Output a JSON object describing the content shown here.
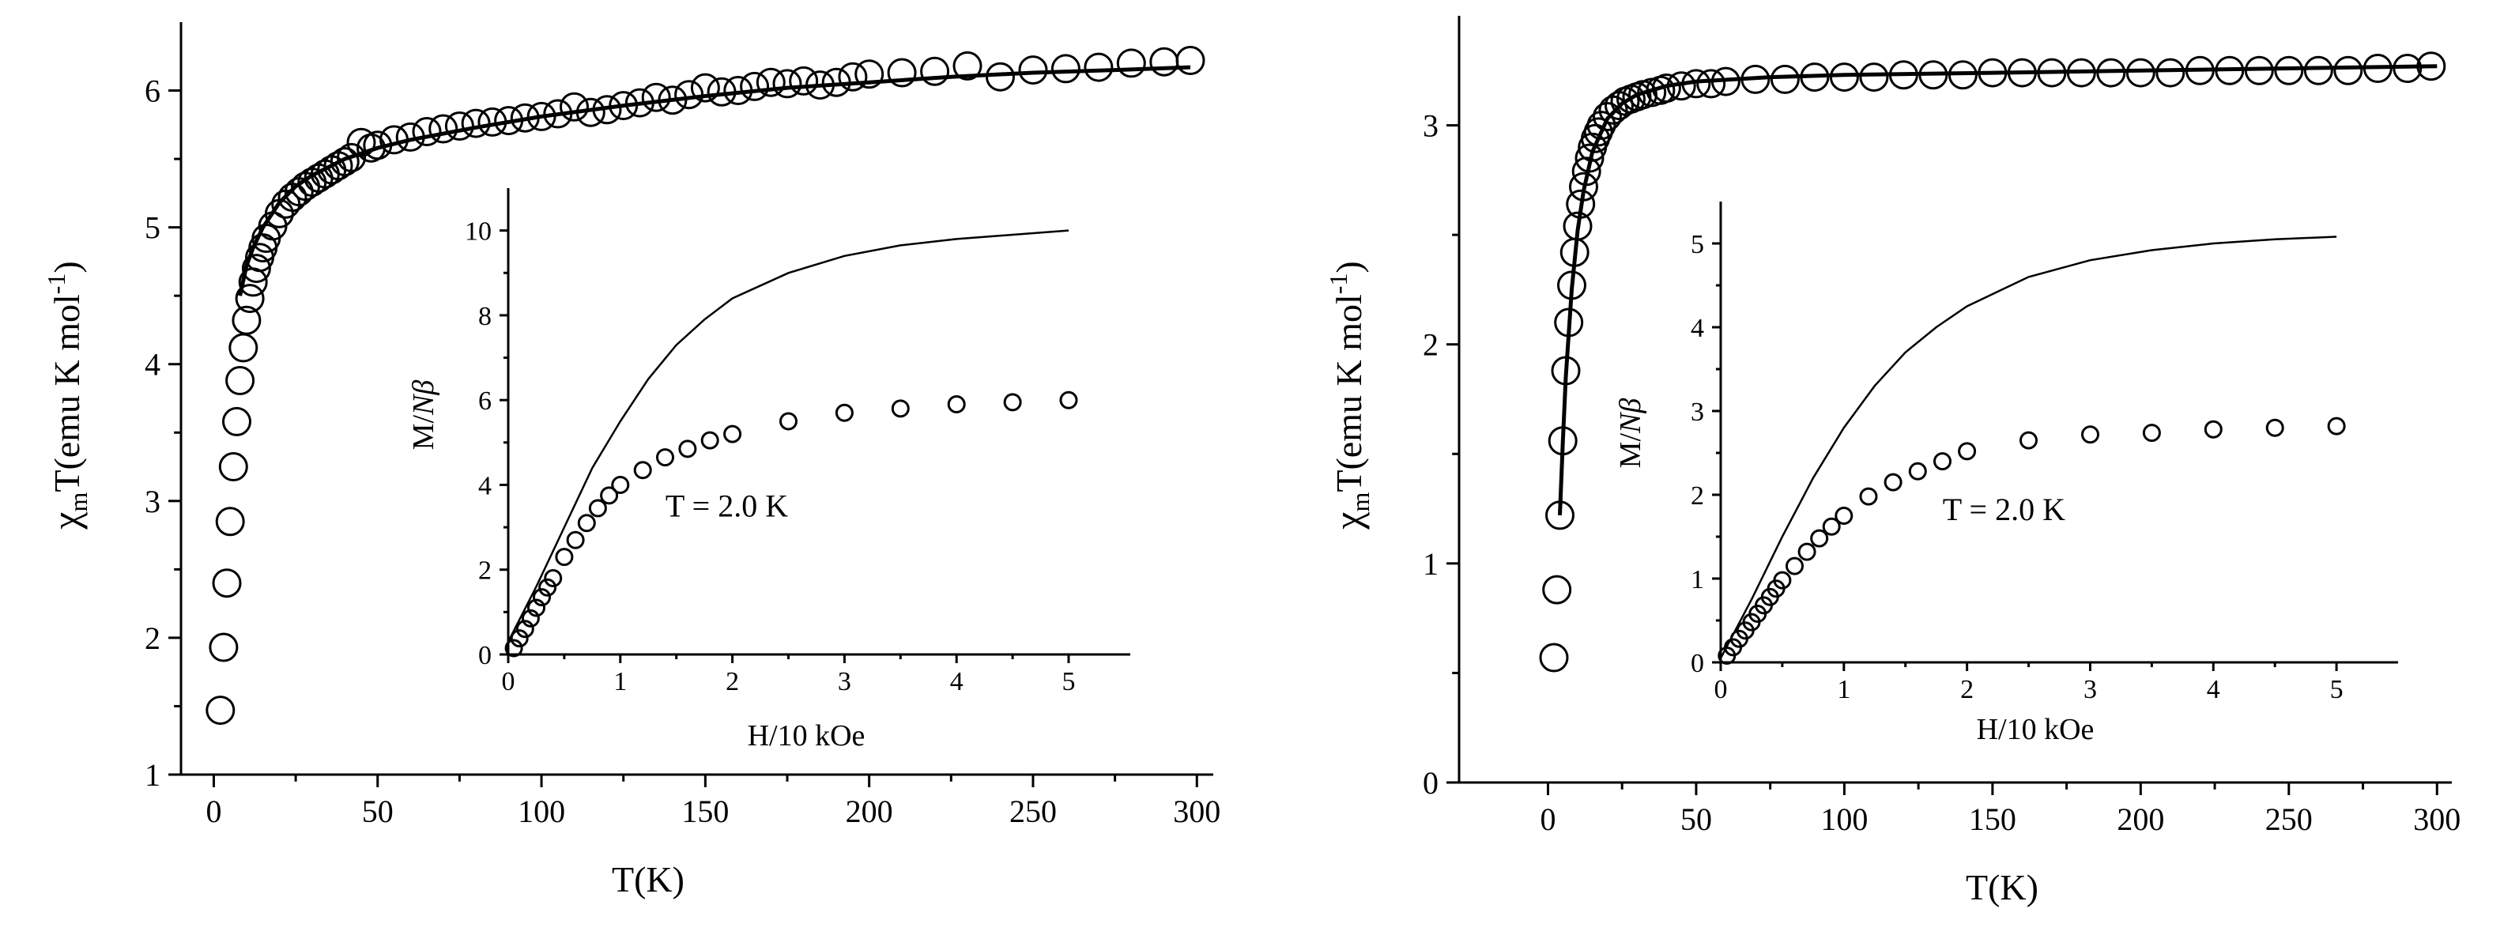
{
  "chart_data": [
    {
      "type": "scatter",
      "panel": "left-main",
      "xlabel": "T(K)",
      "ylabel": {
        "chi": "χ",
        "sub": "m",
        "text": "T(emu K mol",
        "sup": "-1",
        "close": ")"
      },
      "xlim": [
        -10,
        305
      ],
      "ylim": [
        1,
        6.5
      ],
      "xticks": [
        0,
        50,
        100,
        150,
        200,
        250,
        300
      ],
      "yticks": [
        1,
        2,
        3,
        4,
        5,
        6
      ],
      "series": [
        {
          "name": "experimental",
          "style": "open-circle",
          "x": [
            2,
            3,
            4,
            5,
            6,
            7,
            8,
            9,
            10,
            11,
            12,
            13,
            14,
            15,
            16,
            18,
            20,
            22,
            24,
            26,
            28,
            30,
            32,
            34,
            36,
            38,
            40,
            42,
            45,
            48,
            50,
            55,
            60,
            65,
            70,
            75,
            80,
            85,
            90,
            95,
            100,
            105,
            110,
            115,
            120,
            125,
            130,
            135,
            140,
            145,
            150,
            155,
            160,
            165,
            170,
            175,
            180,
            185,
            190,
            195,
            200,
            210,
            220,
            230,
            240,
            250,
            260,
            270,
            280,
            290,
            298
          ],
          "y": [
            1.47,
            1.93,
            2.4,
            2.85,
            3.25,
            3.58,
            3.88,
            4.12,
            4.32,
            4.48,
            4.6,
            4.7,
            4.78,
            4.85,
            4.92,
            5.01,
            5.1,
            5.17,
            5.22,
            5.26,
            5.3,
            5.33,
            5.36,
            5.39,
            5.42,
            5.45,
            5.48,
            5.51,
            5.62,
            5.58,
            5.6,
            5.64,
            5.66,
            5.7,
            5.72,
            5.74,
            5.76,
            5.77,
            5.78,
            5.8,
            5.81,
            5.83,
            5.88,
            5.84,
            5.86,
            5.89,
            5.91,
            5.95,
            5.93,
            5.97,
            6.02,
            5.99,
            6.0,
            6.03,
            6.06,
            6.05,
            6.07,
            6.04,
            6.06,
            6.1,
            6.12,
            6.13,
            6.14,
            6.18,
            6.1,
            6.15,
            6.16,
            6.17,
            6.2,
            6.21,
            6.22
          ]
        },
        {
          "name": "fit",
          "style": "line",
          "x": [
            8,
            10,
            12,
            15,
            20,
            25,
            30,
            40,
            50,
            60,
            80,
            100,
            125,
            150,
            175,
            200,
            225,
            250,
            275,
            298
          ],
          "y": [
            4.5,
            4.72,
            4.85,
            5.0,
            5.18,
            5.3,
            5.38,
            5.5,
            5.58,
            5.64,
            5.73,
            5.81,
            5.89,
            5.96,
            6.02,
            6.06,
            6.1,
            6.13,
            6.15,
            6.17
          ]
        }
      ]
    },
    {
      "type": "scatter",
      "panel": "left-inset",
      "xlabel": "H/10 kOe",
      "ylabel": "M/Nβ",
      "xlim": [
        0,
        5.55
      ],
      "ylim": [
        0,
        11
      ],
      "xticks": [
        0,
        1,
        2,
        3,
        4,
        5
      ],
      "yticks": [
        0,
        2,
        4,
        6,
        8,
        10
      ],
      "annotation": "T = 2.0 K",
      "series": [
        {
          "name": "experimental",
          "style": "open-circle",
          "x": [
            0.05,
            0.1,
            0.15,
            0.2,
            0.25,
            0.3,
            0.35,
            0.4,
            0.5,
            0.6,
            0.7,
            0.8,
            0.9,
            1.0,
            1.2,
            1.4,
            1.6,
            1.8,
            2.0,
            2.5,
            3.0,
            3.5,
            4.0,
            4.5,
            5.0
          ],
          "y": [
            0.15,
            0.38,
            0.6,
            0.85,
            1.1,
            1.35,
            1.58,
            1.8,
            2.3,
            2.7,
            3.1,
            3.45,
            3.75,
            4.0,
            4.35,
            4.65,
            4.85,
            5.05,
            5.2,
            5.5,
            5.7,
            5.8,
            5.9,
            5.95,
            6.0
          ]
        },
        {
          "name": "theory",
          "style": "line",
          "x": [
            0,
            0.25,
            0.5,
            0.75,
            1.0,
            1.25,
            1.5,
            1.75,
            2.0,
            2.5,
            3.0,
            3.5,
            4.0,
            4.5,
            5.0
          ],
          "y": [
            0.3,
            1.6,
            3.0,
            4.4,
            5.5,
            6.5,
            7.3,
            7.9,
            8.4,
            9.0,
            9.4,
            9.65,
            9.8,
            9.9,
            10.0
          ]
        }
      ]
    },
    {
      "type": "scatter",
      "panel": "right-main",
      "xlabel": "T(K)",
      "ylabel": {
        "chi": "χ",
        "sub": "m",
        "text": "T(emu K mol",
        "sup": "-1",
        "close": ")"
      },
      "xlim": [
        -30,
        305
      ],
      "ylim": [
        0,
        3.5
      ],
      "xticks": [
        0,
        50,
        100,
        150,
        200,
        250,
        300
      ],
      "yticks": [
        0,
        1,
        2,
        3
      ],
      "series": [
        {
          "name": "experimental",
          "style": "open-circle",
          "x": [
            2,
            3,
            4,
            5,
            6,
            7,
            8,
            9,
            10,
            11,
            12,
            13,
            14,
            15,
            16,
            17,
            18,
            20,
            22,
            24,
            26,
            28,
            30,
            32,
            35,
            38,
            40,
            45,
            50,
            55,
            60,
            70,
            80,
            90,
            100,
            110,
            120,
            130,
            140,
            150,
            160,
            170,
            180,
            190,
            200,
            210,
            220,
            230,
            240,
            250,
            260,
            270,
            280,
            290,
            298
          ],
          "y": [
            0.57,
            0.88,
            1.22,
            1.56,
            1.88,
            2.1,
            2.27,
            2.42,
            2.54,
            2.64,
            2.72,
            2.79,
            2.85,
            2.9,
            2.94,
            2.97,
            3.0,
            3.04,
            3.07,
            3.09,
            3.11,
            3.12,
            3.13,
            3.14,
            3.15,
            3.16,
            3.17,
            3.18,
            3.19,
            3.19,
            3.2,
            3.21,
            3.21,
            3.22,
            3.22,
            3.22,
            3.23,
            3.23,
            3.23,
            3.24,
            3.24,
            3.24,
            3.24,
            3.24,
            3.24,
            3.24,
            3.25,
            3.25,
            3.25,
            3.25,
            3.25,
            3.25,
            3.26,
            3.26,
            3.27
          ]
        },
        {
          "name": "fit",
          "style": "line",
          "x": [
            4,
            5,
            6,
            8,
            10,
            12,
            15,
            20,
            25,
            30,
            40,
            50,
            75,
            100,
            150,
            200,
            250,
            300
          ],
          "y": [
            1.22,
            1.55,
            1.85,
            2.25,
            2.52,
            2.7,
            2.88,
            3.03,
            3.1,
            3.14,
            3.18,
            3.2,
            3.22,
            3.23,
            3.24,
            3.25,
            3.26,
            3.27
          ]
        }
      ]
    },
    {
      "type": "scatter",
      "panel": "right-inset",
      "xlabel": "H/10 kOe",
      "ylabel": "M/Nβ",
      "xlim": [
        0,
        5.5
      ],
      "ylim": [
        0,
        5.5
      ],
      "xticks": [
        0,
        1,
        2,
        3,
        4,
        5
      ],
      "yticks": [
        0,
        1,
        2,
        3,
        4,
        5
      ],
      "annotation": "T = 2.0 K",
      "series": [
        {
          "name": "experimental",
          "style": "open-circle",
          "x": [
            0.05,
            0.1,
            0.15,
            0.2,
            0.25,
            0.3,
            0.35,
            0.4,
            0.45,
            0.5,
            0.6,
            0.7,
            0.8,
            0.9,
            1.0,
            1.2,
            1.4,
            1.6,
            1.8,
            2.0,
            2.5,
            3.0,
            3.5,
            4.0,
            4.5,
            5.0
          ],
          "y": [
            0.08,
            0.18,
            0.28,
            0.38,
            0.48,
            0.58,
            0.68,
            0.78,
            0.88,
            0.98,
            1.15,
            1.32,
            1.48,
            1.62,
            1.75,
            1.98,
            2.15,
            2.28,
            2.4,
            2.52,
            2.65,
            2.72,
            2.74,
            2.78,
            2.8,
            2.82
          ]
        },
        {
          "name": "theory",
          "style": "line",
          "x": [
            0,
            0.25,
            0.5,
            0.75,
            1.0,
            1.25,
            1.5,
            1.75,
            2.0,
            2.5,
            3.0,
            3.5,
            4.0,
            4.5,
            5.0
          ],
          "y": [
            0.05,
            0.75,
            1.5,
            2.2,
            2.8,
            3.3,
            3.7,
            4.0,
            4.25,
            4.6,
            4.8,
            4.92,
            5.0,
            5.05,
            5.08
          ]
        }
      ]
    }
  ]
}
